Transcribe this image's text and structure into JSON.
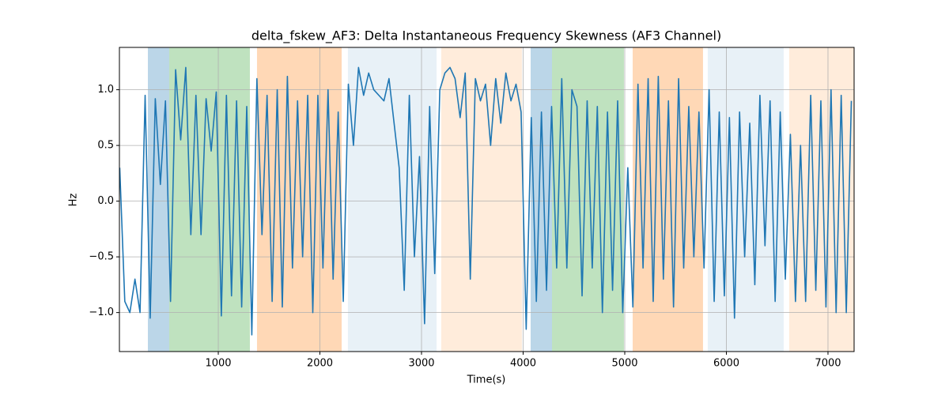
{
  "chart_data": {
    "type": "line",
    "title": "delta_fskew_AF3: Delta Instantaneous Frequency Skewness (AF3 Channel)",
    "xlabel": "Time(s)",
    "ylabel": "Hz",
    "color": "#1f77b4",
    "grid": true,
    "xlim": [
      27,
      7257
    ],
    "ylim": [
      -1.35,
      1.38
    ],
    "xticks": [
      1000,
      2000,
      3000,
      4000,
      5000,
      6000,
      7000
    ],
    "yticks": [
      {
        "value": -1,
        "label": "−1.0"
      },
      {
        "value": -0.5,
        "label": "−0.5"
      },
      {
        "value": 0,
        "label": "0.0"
      },
      0.5,
      {
        "value": 1,
        "label": "1.0"
      }
    ],
    "regions": [
      {
        "start": 307,
        "end": 517,
        "color": "#1f77b4",
        "opacity": 0.3
      },
      {
        "start": 517,
        "end": 1311,
        "color": "#2ca02c",
        "opacity": 0.3
      },
      {
        "start": 1381,
        "end": 2214,
        "color": "#ff7f0e",
        "opacity": 0.3
      },
      {
        "start": 2276,
        "end": 3148,
        "color": "#1f77b4",
        "opacity": 0.1
      },
      {
        "start": 3194,
        "end": 3988,
        "color": "#ff7f0e",
        "opacity": 0.15
      },
      {
        "start": 4074,
        "end": 4284,
        "color": "#1f77b4",
        "opacity": 0.3
      },
      {
        "start": 4284,
        "end": 4992,
        "color": "#2ca02c",
        "opacity": 0.3
      },
      {
        "start": 5078,
        "end": 5770,
        "color": "#ff7f0e",
        "opacity": 0.3
      },
      {
        "start": 5817,
        "end": 6564,
        "color": "#1f77b4",
        "opacity": 0.1
      },
      {
        "start": 6618,
        "end": 7257,
        "color": "#ff7f0e",
        "opacity": 0.15
      }
    ],
    "x": [
      30,
      80,
      130,
      180,
      230,
      280,
      330,
      380,
      430,
      480,
      530,
      580,
      630,
      680,
      730,
      780,
      830,
      880,
      930,
      980,
      1030,
      1080,
      1130,
      1180,
      1230,
      1280,
      1330,
      1380,
      1430,
      1480,
      1530,
      1580,
      1630,
      1680,
      1730,
      1780,
      1830,
      1880,
      1930,
      1980,
      2030,
      2080,
      2130,
      2180,
      2230,
      2280,
      2330,
      2380,
      2430,
      2480,
      2530,
      2580,
      2630,
      2680,
      2730,
      2780,
      2830,
      2880,
      2930,
      2980,
      3030,
      3080,
      3130,
      3180,
      3230,
      3280,
      3330,
      3380,
      3430,
      3480,
      3530,
      3580,
      3630,
      3680,
      3730,
      3780,
      3830,
      3880,
      3930,
      3980,
      4030,
      4080,
      4130,
      4180,
      4230,
      4280,
      4330,
      4380,
      4430,
      4480,
      4530,
      4580,
      4630,
      4680,
      4730,
      4780,
      4830,
      4880,
      4930,
      4980,
      5030,
      5080,
      5130,
      5180,
      5230,
      5280,
      5330,
      5380,
      5430,
      5480,
      5530,
      5580,
      5630,
      5680,
      5730,
      5780,
      5830,
      5880,
      5930,
      5980,
      6030,
      6080,
      6130,
      6180,
      6230,
      6280,
      6330,
      6380,
      6430,
      6480,
      6530,
      6580,
      6630,
      6680,
      6730,
      6780,
      6830,
      6880,
      6930,
      6980,
      7030,
      7080,
      7130,
      7180,
      7230
    ],
    "values": [
      0.3,
      -0.9,
      -1.0,
      -0.7,
      -1.0,
      0.95,
      -1.05,
      0.92,
      0.15,
      0.9,
      -0.9,
      1.18,
      0.55,
      1.2,
      -0.3,
      0.95,
      -0.3,
      0.92,
      0.45,
      0.98,
      -1.03,
      0.95,
      -0.85,
      0.9,
      -0.95,
      0.85,
      -1.2,
      1.1,
      -0.3,
      0.95,
      -0.9,
      1.0,
      -0.95,
      1.12,
      -0.6,
      0.9,
      -0.5,
      0.95,
      -1.0,
      0.95,
      -0.6,
      1.0,
      -0.7,
      0.8,
      -0.9,
      1.05,
      0.5,
      1.2,
      0.95,
      1.15,
      1.0,
      0.95,
      0.9,
      1.1,
      0.7,
      0.3,
      -0.8,
      0.95,
      -0.5,
      0.4,
      -1.1,
      0.85,
      -0.65,
      1.0,
      1.15,
      1.2,
      1.1,
      0.75,
      1.15,
      -0.7,
      1.1,
      0.9,
      1.05,
      0.5,
      1.1,
      0.7,
      1.15,
      0.9,
      1.05,
      0.8,
      -1.15,
      0.75,
      -0.9,
      0.8,
      -0.8,
      0.85,
      -0.6,
      1.1,
      -0.6,
      1.0,
      0.85,
      -0.85,
      0.9,
      -0.6,
      0.85,
      -1.0,
      0.8,
      -0.8,
      0.9,
      -1.0,
      0.3,
      -0.95,
      1.05,
      -0.6,
      1.1,
      -0.9,
      1.12,
      -0.7,
      0.9,
      -0.95,
      1.1,
      -0.6,
      0.85,
      -0.5,
      0.8,
      -0.6,
      1.0,
      -0.9,
      0.8,
      -0.85,
      0.75,
      -1.05,
      0.8,
      -0.5,
      0.7,
      -0.75,
      0.95,
      -0.4,
      0.9,
      -0.9,
      0.8,
      -0.7,
      0.6,
      -0.9,
      0.5,
      -0.9,
      0.95,
      -0.8,
      0.9,
      -0.95,
      1.0,
      -1.0,
      0.95,
      -1.0,
      0.9
    ]
  }
}
